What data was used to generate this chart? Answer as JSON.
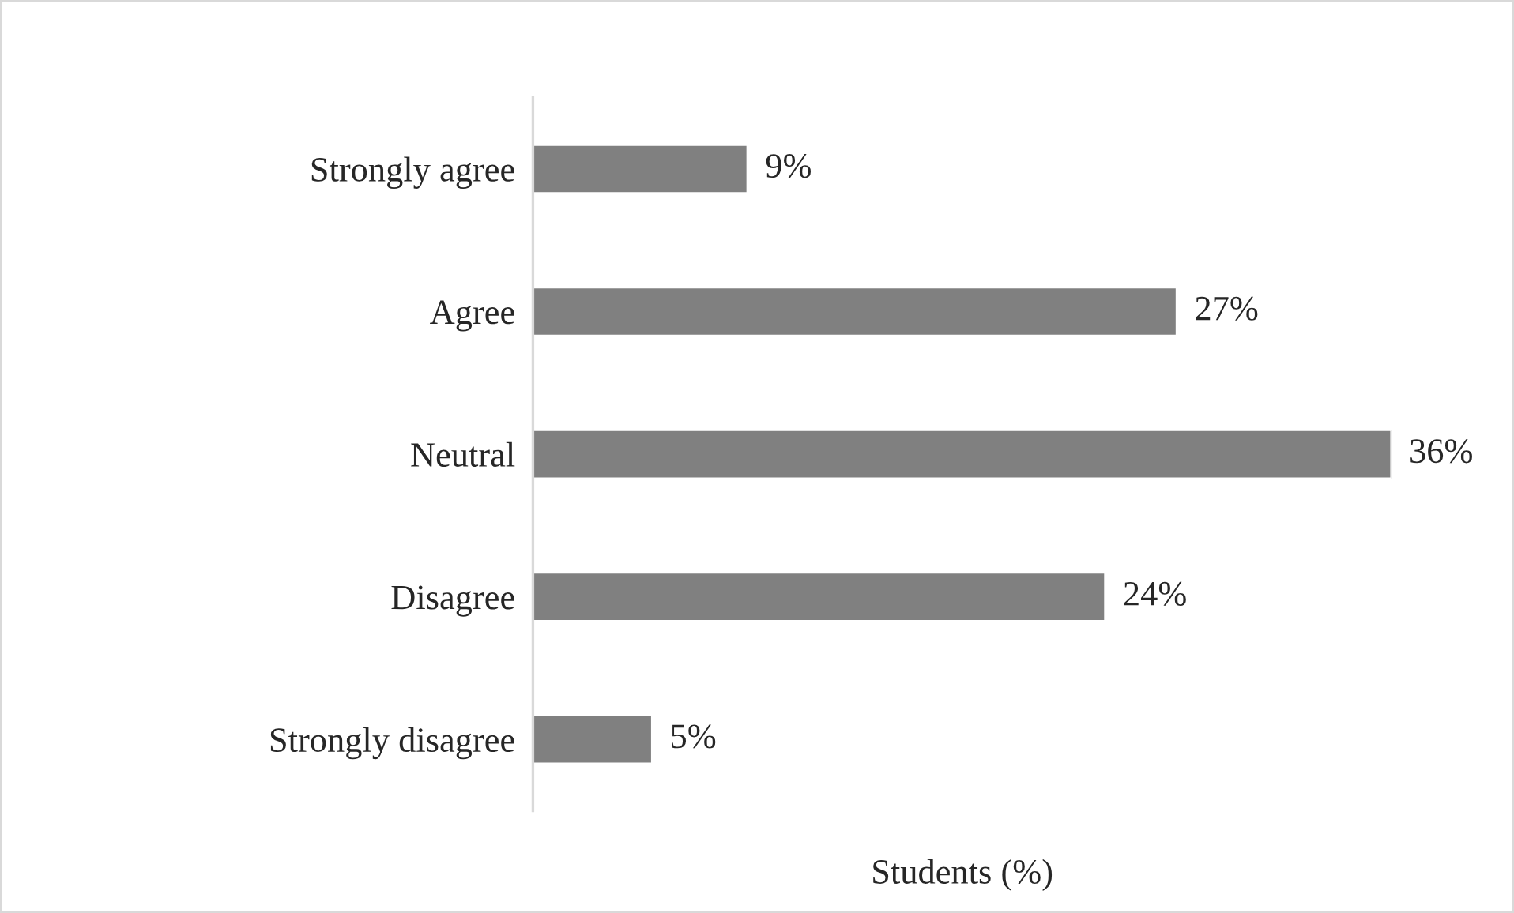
{
  "chart_data": {
    "type": "bar",
    "orientation": "horizontal",
    "xlabel": "Students (%)",
    "categories": [
      "Strongly agree",
      "Agree",
      "Neutral",
      "Disagree",
      "Strongly disagree"
    ],
    "values": [
      9,
      27,
      36,
      24,
      5
    ],
    "value_labels": [
      "9%",
      "27%",
      "36%",
      "24%",
      "5%"
    ],
    "color": "#808080",
    "tick_labels": "y",
    "grid": false,
    "legend": false
  }
}
